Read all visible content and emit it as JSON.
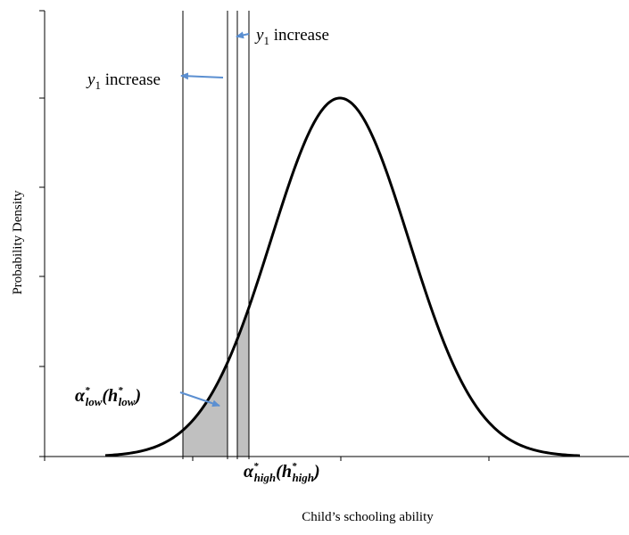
{
  "axes": {
    "ylabel": "Probability Density",
    "xlabel": "Child’s schooling ability"
  },
  "annotations": {
    "y1_increase_left": {
      "symbol": "y",
      "subscript": "1",
      "text": " increase"
    },
    "y1_increase_right": {
      "symbol": "y",
      "subscript": "1",
      "text": " increase"
    },
    "alpha_low": {
      "symbol": "α",
      "sub": "low",
      "open": "(",
      "h": "h",
      "hsub": "low",
      "close": ")",
      "star": "*"
    },
    "alpha_high": {
      "symbol": "α",
      "sub": "high",
      "open": "(",
      "h": "h",
      "hsub": "high",
      "close": ")",
      "star": "*"
    }
  },
  "colors": {
    "curve": "#000000",
    "shade": "#c0c0c0",
    "arrow": "#5b8fd1"
  }
}
